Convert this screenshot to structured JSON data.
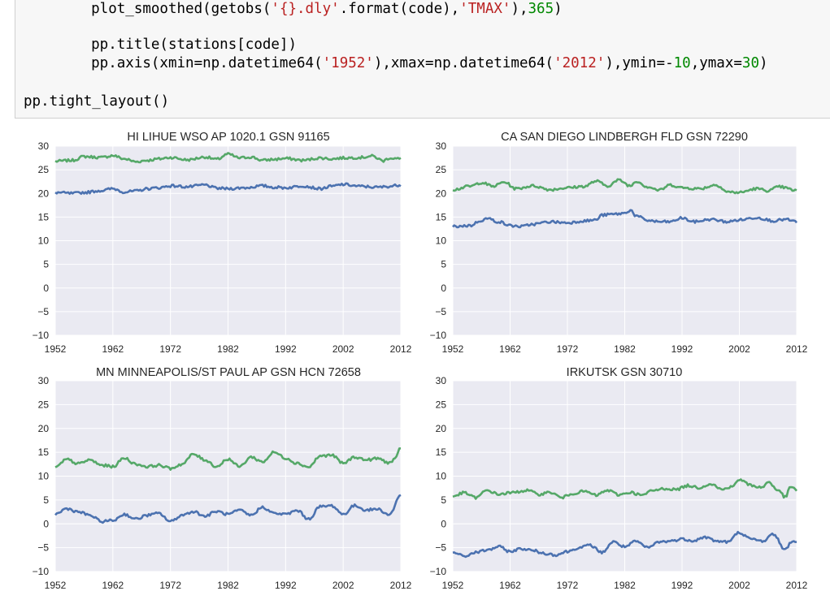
{
  "code": {
    "line1": {
      "a": "    plot_smoothed(getobs(",
      "b": "'{}.dly'",
      "c": ".format(code),",
      "d": "'TMAX'",
      "e": "),",
      "f": "365",
      "g": ")"
    },
    "line2": "    pp.title(stations[code])",
    "line3": {
      "a": "    pp.axis(xmin=np.datetime64(",
      "b": "'1952'",
      "c": "),xmax=np.datetime64(",
      "d": "'2012'",
      "e": "),ymin=-",
      "f": "10",
      "g": ",ymax=",
      "h": "30",
      "i": ")"
    },
    "line4": "pp.tight_layout()"
  },
  "colors": {
    "tmin": "#4c72b0",
    "tmax": "#55a868",
    "axes_bg": "#eaeaf2",
    "grid": "#ffffff"
  },
  "chart_data": [
    {
      "type": "line",
      "title": "HI LIHUE WSO AP 1020.1 GSN 91165",
      "xlim": [
        1952,
        2012
      ],
      "ylim": [
        -10,
        30
      ],
      "x_ticks": [
        "1952",
        "1962",
        "1972",
        "1982",
        "1992",
        "2002",
        "2012"
      ],
      "y_ticks": [
        "30",
        "25",
        "20",
        "15",
        "10",
        "5",
        "0",
        "−5",
        "−10"
      ],
      "series": [
        {
          "color": "#55a868",
          "knots": [
            [
              1952,
              26.8
            ],
            [
              1955,
              27.0
            ],
            [
              1957,
              27.8
            ],
            [
              1960,
              27.6
            ],
            [
              1962,
              28.0
            ],
            [
              1964,
              27.3
            ],
            [
              1966,
              26.7
            ],
            [
              1968,
              27.0
            ],
            [
              1970,
              27.3
            ],
            [
              1972,
              27.6
            ],
            [
              1975,
              27.1
            ],
            [
              1978,
              27.7
            ],
            [
              1980,
              27.2
            ],
            [
              1982,
              28.3
            ],
            [
              1984,
              27.5
            ],
            [
              1986,
              27.7
            ],
            [
              1988,
              27.0
            ],
            [
              1990,
              27.2
            ],
            [
              1992,
              27.4
            ],
            [
              1995,
              27.0
            ],
            [
              1998,
              27.5
            ],
            [
              2000,
              27.3
            ],
            [
              2002,
              27.5
            ],
            [
              2005,
              27.6
            ],
            [
              2007,
              27.9
            ],
            [
              2009,
              26.9
            ],
            [
              2010,
              27.5
            ],
            [
              2012,
              27.3
            ]
          ]
        },
        {
          "color": "#4c72b0",
          "knots": [
            [
              1952,
              20.2
            ],
            [
              1955,
              20.0
            ],
            [
              1957,
              20.2
            ],
            [
              1960,
              20.6
            ],
            [
              1962,
              21.0
            ],
            [
              1964,
              20.3
            ],
            [
              1966,
              20.5
            ],
            [
              1968,
              21.0
            ],
            [
              1970,
              21.2
            ],
            [
              1972,
              21.6
            ],
            [
              1975,
              21.4
            ],
            [
              1978,
              21.8
            ],
            [
              1980,
              21.1
            ],
            [
              1982,
              21.0
            ],
            [
              1985,
              21.2
            ],
            [
              1988,
              21.6
            ],
            [
              1990,
              21.3
            ],
            [
              1992,
              21.2
            ],
            [
              1995,
              21.6
            ],
            [
              1998,
              21.0
            ],
            [
              2000,
              21.5
            ],
            [
              2002,
              21.9
            ],
            [
              2005,
              21.5
            ],
            [
              2008,
              21.3
            ],
            [
              2010,
              21.5
            ],
            [
              2012,
              21.8
            ]
          ]
        }
      ]
    },
    {
      "type": "line",
      "title": "CA SAN DIEGO LINDBERGH FLD GSN 72290",
      "xlim": [
        1952,
        2012
      ],
      "ylim": [
        -10,
        30
      ],
      "x_ticks": [
        "1952",
        "1962",
        "1972",
        "1982",
        "1992",
        "2002",
        "2012"
      ],
      "y_ticks": [
        "30",
        "25",
        "20",
        "15",
        "10",
        "5",
        "0",
        "−5",
        "−10"
      ],
      "series": [
        {
          "color": "#55a868",
          "knots": [
            [
              1952,
              20.8
            ],
            [
              1955,
              21.5
            ],
            [
              1957,
              22.3
            ],
            [
              1959,
              21.5
            ],
            [
              1961,
              22.4
            ],
            [
              1963,
              21.0
            ],
            [
              1966,
              21.6
            ],
            [
              1969,
              20.8
            ],
            [
              1972,
              21.2
            ],
            [
              1975,
              21.5
            ],
            [
              1977,
              22.6
            ],
            [
              1979,
              21.6
            ],
            [
              1981,
              22.8
            ],
            [
              1983,
              21.6
            ],
            [
              1984,
              22.6
            ],
            [
              1986,
              21.4
            ],
            [
              1988,
              20.7
            ],
            [
              1990,
              21.8
            ],
            [
              1992,
              21.2
            ],
            [
              1995,
              21.0
            ],
            [
              1998,
              21.8
            ],
            [
              2000,
              20.3
            ],
            [
              2002,
              20.2
            ],
            [
              2005,
              21.0
            ],
            [
              2007,
              20.6
            ],
            [
              2009,
              21.4
            ],
            [
              2012,
              20.6
            ]
          ]
        },
        {
          "color": "#4c72b0",
          "knots": [
            [
              1952,
              13.0
            ],
            [
              1955,
              13.2
            ],
            [
              1957,
              14.3
            ],
            [
              1958,
              14.7
            ],
            [
              1960,
              14.0
            ],
            [
              1962,
              13.2
            ],
            [
              1964,
              13.0
            ],
            [
              1966,
              13.5
            ],
            [
              1969,
              14.0
            ],
            [
              1972,
              13.8
            ],
            [
              1975,
              14.2
            ],
            [
              1977,
              14.4
            ],
            [
              1978,
              15.4
            ],
            [
              1980,
              15.6
            ],
            [
              1982,
              15.8
            ],
            [
              1983,
              16.5
            ],
            [
              1984,
              15.2
            ],
            [
              1986,
              14.3
            ],
            [
              1988,
              14.0
            ],
            [
              1990,
              14.0
            ],
            [
              1992,
              14.8
            ],
            [
              1994,
              14.0
            ],
            [
              1997,
              14.5
            ],
            [
              2000,
              14.0
            ],
            [
              2002,
              14.4
            ],
            [
              2005,
              14.9
            ],
            [
              2008,
              14.2
            ],
            [
              2010,
              14.5
            ],
            [
              2012,
              14.0
            ]
          ]
        }
      ]
    },
    {
      "type": "line",
      "title": "MN MINNEAPOLIS/ST PAUL AP GSN HCN 72658",
      "xlim": [
        1952,
        2012
      ],
      "ylim": [
        -10,
        30
      ],
      "x_ticks": [
        "1952",
        "1962",
        "1972",
        "1982",
        "1992",
        "2002",
        "2012"
      ],
      "y_ticks": [
        "30",
        "25",
        "20",
        "15",
        "10",
        "5",
        "0",
        "−5",
        "−10"
      ],
      "series": [
        {
          "color": "#55a868",
          "knots": [
            [
              1952,
              11.8
            ],
            [
              1954,
              13.5
            ],
            [
              1956,
              12.6
            ],
            [
              1958,
              13.4
            ],
            [
              1960,
              12.3
            ],
            [
              1962,
              12.0
            ],
            [
              1964,
              13.8
            ],
            [
              1966,
              12.5
            ],
            [
              1968,
              12.0
            ],
            [
              1970,
              12.3
            ],
            [
              1972,
              11.6
            ],
            [
              1974,
              12.5
            ],
            [
              1976,
              14.6
            ],
            [
              1978,
              13.4
            ],
            [
              1980,
              12.0
            ],
            [
              1982,
              13.6
            ],
            [
              1984,
              12.0
            ],
            [
              1986,
              14.0
            ],
            [
              1988,
              13.0
            ],
            [
              1990,
              15.0
            ],
            [
              1992,
              13.8
            ],
            [
              1994,
              12.7
            ],
            [
              1996,
              11.9
            ],
            [
              1998,
              14.2
            ],
            [
              2000,
              14.4
            ],
            [
              2002,
              12.7
            ],
            [
              2004,
              14.0
            ],
            [
              2006,
              13.4
            ],
            [
              2008,
              13.7
            ],
            [
              2010,
              12.8
            ],
            [
              2011,
              13.5
            ],
            [
              2012,
              16.0
            ]
          ]
        },
        {
          "color": "#4c72b0",
          "knots": [
            [
              1952,
              2.0
            ],
            [
              1954,
              3.2
            ],
            [
              1956,
              2.5
            ],
            [
              1958,
              1.8
            ],
            [
              1960,
              0.5
            ],
            [
              1962,
              0.7
            ],
            [
              1964,
              2.0
            ],
            [
              1966,
              1.0
            ],
            [
              1968,
              1.8
            ],
            [
              1970,
              2.2
            ],
            [
              1972,
              0.5
            ],
            [
              1974,
              1.8
            ],
            [
              1976,
              2.6
            ],
            [
              1978,
              1.6
            ],
            [
              1980,
              2.6
            ],
            [
              1982,
              2.0
            ],
            [
              1984,
              2.8
            ],
            [
              1986,
              1.8
            ],
            [
              1988,
              3.5
            ],
            [
              1990,
              2.2
            ],
            [
              1992,
              2.0
            ],
            [
              1994,
              2.8
            ],
            [
              1996,
              1.0
            ],
            [
              1998,
              3.6
            ],
            [
              2000,
              3.8
            ],
            [
              2002,
              2.0
            ],
            [
              2004,
              3.8
            ],
            [
              2006,
              2.9
            ],
            [
              2008,
              3.1
            ],
            [
              2010,
              1.9
            ],
            [
              2012,
              6.0
            ]
          ]
        }
      ]
    },
    {
      "type": "line",
      "title": "IRKUTSK GSN 30710",
      "xlim": [
        1952,
        2012
      ],
      "ylim": [
        -10,
        30
      ],
      "x_ticks": [
        "1952",
        "1962",
        "1972",
        "1982",
        "1992",
        "2002",
        "2012"
      ],
      "y_ticks": [
        "30",
        "25",
        "20",
        "15",
        "10",
        "5",
        "0",
        "−5",
        "−10"
      ],
      "series": [
        {
          "color": "#55a868",
          "knots": [
            [
              1952,
              5.8
            ],
            [
              1954,
              6.5
            ],
            [
              1956,
              5.5
            ],
            [
              1958,
              7.0
            ],
            [
              1960,
              6.2
            ],
            [
              1962,
              6.5
            ],
            [
              1965,
              7.0
            ],
            [
              1967,
              6.2
            ],
            [
              1969,
              6.6
            ],
            [
              1971,
              5.5
            ],
            [
              1973,
              6.4
            ],
            [
              1975,
              6.8
            ],
            [
              1977,
              6.0
            ],
            [
              1979,
              7.0
            ],
            [
              1981,
              6.1
            ],
            [
              1983,
              6.6
            ],
            [
              1985,
              6.0
            ],
            [
              1987,
              7.0
            ],
            [
              1989,
              7.4
            ],
            [
              1991,
              7.2
            ],
            [
              1993,
              8.0
            ],
            [
              1995,
              7.6
            ],
            [
              1997,
              8.4
            ],
            [
              1999,
              7.2
            ],
            [
              2001,
              8.0
            ],
            [
              2002,
              9.3
            ],
            [
              2004,
              8.1
            ],
            [
              2006,
              7.6
            ],
            [
              2007,
              8.8
            ],
            [
              2009,
              6.8
            ],
            [
              2010,
              5.6
            ],
            [
              2011,
              7.8
            ],
            [
              2012,
              7.0
            ]
          ]
        },
        {
          "color": "#4c72b0",
          "knots": [
            [
              1952,
              -6.0
            ],
            [
              1954,
              -6.8
            ],
            [
              1956,
              -6.0
            ],
            [
              1958,
              -5.5
            ],
            [
              1960,
              -4.8
            ],
            [
              1962,
              -5.8
            ],
            [
              1964,
              -5.2
            ],
            [
              1966,
              -5.6
            ],
            [
              1968,
              -6.2
            ],
            [
              1970,
              -6.5
            ],
            [
              1972,
              -5.8
            ],
            [
              1974,
              -5.0
            ],
            [
              1976,
              -4.5
            ],
            [
              1978,
              -6.0
            ],
            [
              1980,
              -3.8
            ],
            [
              1982,
              -4.8
            ],
            [
              1984,
              -3.7
            ],
            [
              1986,
              -5.0
            ],
            [
              1988,
              -3.8
            ],
            [
              1990,
              -3.6
            ],
            [
              1992,
              -3.2
            ],
            [
              1994,
              -3.5
            ],
            [
              1996,
              -2.8
            ],
            [
              1998,
              -3.6
            ],
            [
              2000,
              -3.8
            ],
            [
              2002,
              -1.8
            ],
            [
              2004,
              -3.2
            ],
            [
              2006,
              -3.6
            ],
            [
              2008,
              -2.2
            ],
            [
              2010,
              -5.5
            ],
            [
              2011,
              -3.8
            ],
            [
              2012,
              -3.6
            ]
          ]
        }
      ]
    }
  ]
}
